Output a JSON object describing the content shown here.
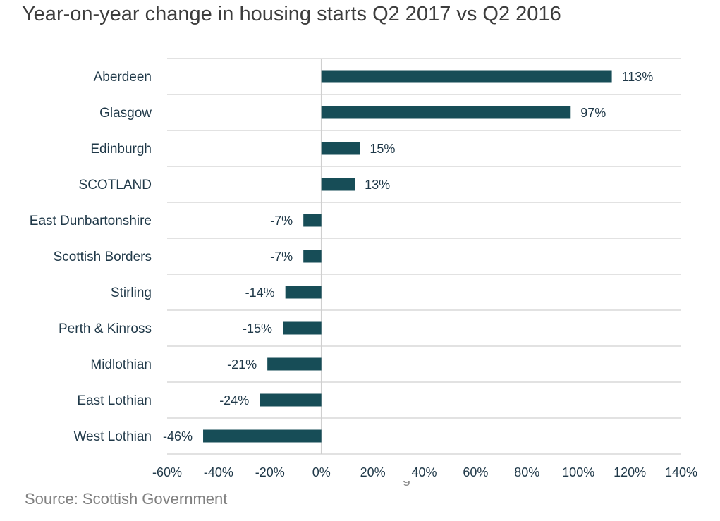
{
  "source": "Source: Scottish Government",
  "partial_glyph": "g",
  "colors": {
    "background": "#ffffff",
    "bar": "#174d57",
    "label_text": "#1f3848",
    "gridline": "#d9d9d9",
    "zero_axis": "#cfcfcf"
  },
  "chart_data": {
    "type": "bar",
    "orientation": "horizontal",
    "title": "Year-on-year change in housing starts Q2 2017 vs Q2 2016",
    "xlabel": "",
    "ylabel": "",
    "categories": [
      "Aberdeen",
      "Glasgow",
      "Edinburgh",
      "SCOTLAND",
      "East Dunbartonshire",
      "Scottish Borders",
      "Stirling",
      "Perth & Kinross",
      "Midlothian",
      "East Lothian",
      "West Lothian"
    ],
    "values": [
      113,
      97,
      15,
      13,
      -7,
      -7,
      -14,
      -15,
      -21,
      -24,
      -46
    ],
    "value_labels": [
      "113%",
      "97%",
      "15%",
      "13%",
      "-7%",
      "-7%",
      "-14%",
      "-15%",
      "-21%",
      "-24%",
      "-46%"
    ],
    "xlim": [
      -60,
      140
    ],
    "xticks": [
      -60,
      -40,
      -20,
      0,
      20,
      40,
      60,
      80,
      100,
      120,
      140
    ],
    "xtick_labels": [
      "-60%",
      "-40%",
      "-20%",
      "0%",
      "20%",
      "40%",
      "60%",
      "80%",
      "100%",
      "120%",
      "140%"
    ],
    "grid": true,
    "legend": "none"
  }
}
